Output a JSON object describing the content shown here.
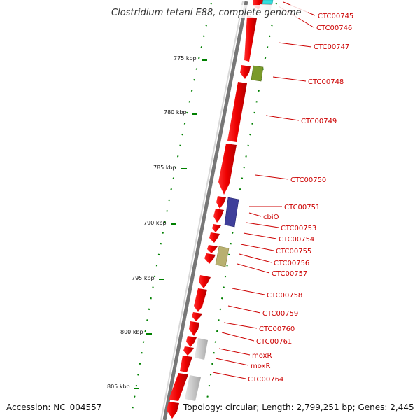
{
  "title": "Clostridium tetani E88, complete genome",
  "footer": {
    "accession": "Accession: NC_004557",
    "topology": "Topology: circular; Length: 2,799,251 bp; Genes: 2,445"
  },
  "colors": {
    "cds": "#ee0000",
    "label": "#cc0000",
    "tick": "#008000",
    "backbone": "#8a8a8a",
    "feature_cyan": "#33dddd",
    "feature_olive": "#7a9a2a",
    "feature_navy": "#3f3f9a",
    "feature_khaki": "#b8b070",
    "feature_gray": "#c0c0c0"
  },
  "ticks": [
    {
      "label": "775 kbp"
    },
    {
      "label": "780 kbp"
    },
    {
      "label": "785 kbp"
    },
    {
      "label": "790 kbp"
    },
    {
      "label": "795 kbp"
    },
    {
      "label": "800 kbp"
    },
    {
      "label": "805 kbp"
    }
  ],
  "gene_labels": [
    "CTC00745",
    "CTC00746",
    "CTC00747",
    "CTC00748",
    "CTC00749",
    "CTC00750",
    "CTC00751",
    "cbiO",
    "CTC00753",
    "CTC00754",
    "CTC00755",
    "CTC00756",
    "CTC00757",
    "CTC00758",
    "CTC00759",
    "CTC00760",
    "CTC00761",
    "moxR",
    "moxR",
    "CTC00764"
  ]
}
